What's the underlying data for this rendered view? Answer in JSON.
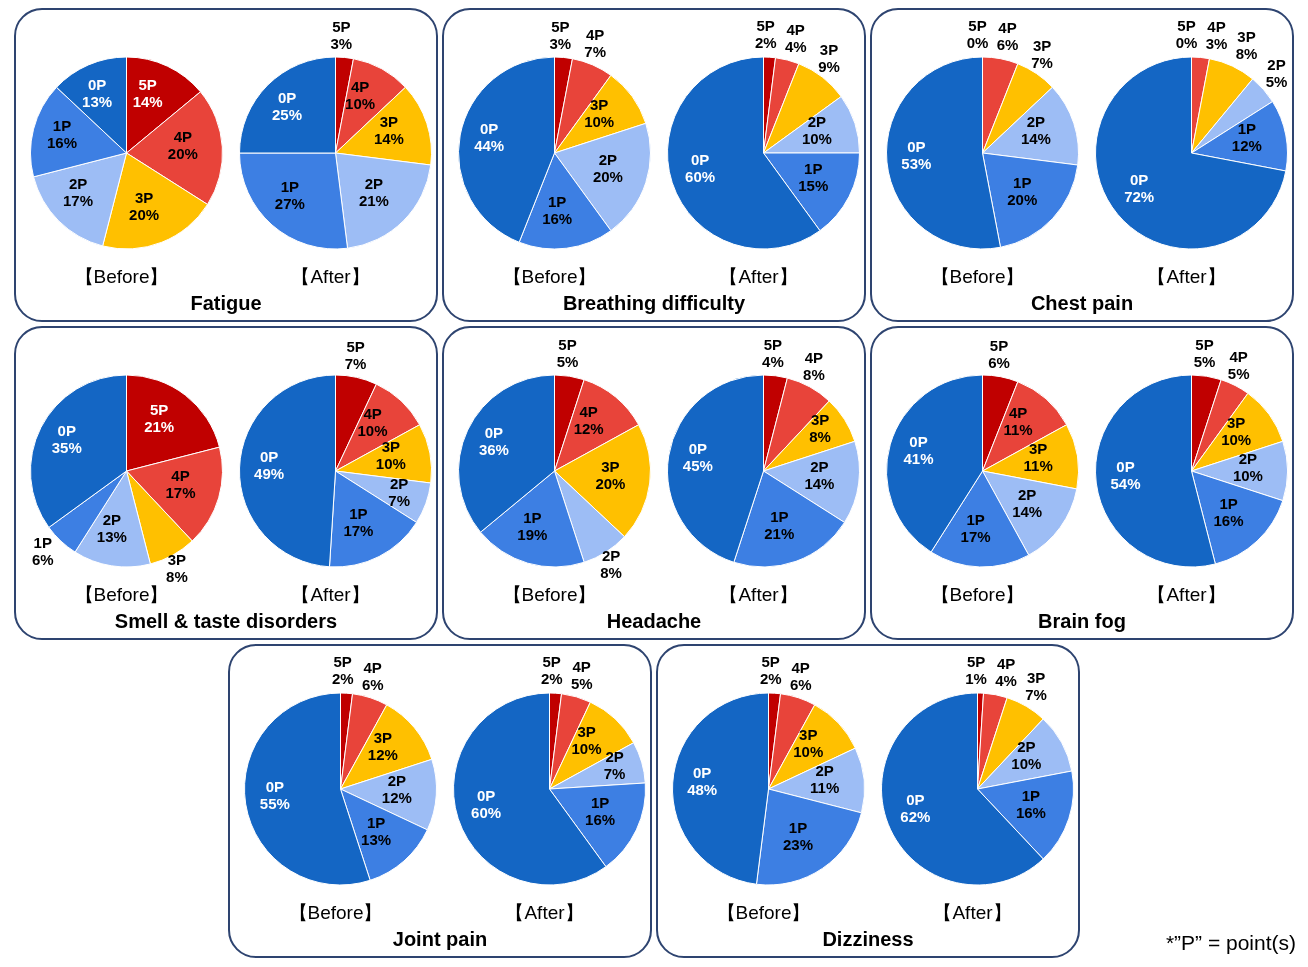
{
  "chart_data": [
    {
      "type": "pie",
      "title": "Fatigue",
      "xlabel": "【Before】",
      "categories": [
        "5P",
        "4P",
        "3P",
        "2P",
        "1P",
        "0P"
      ],
      "values": [
        14,
        20,
        20,
        17,
        16,
        13
      ],
      "value_labels": [
        "14%",
        "20%",
        "20%",
        "17%",
        "16%",
        "13%"
      ],
      "data_labels": true,
      "colors": [
        "#c00000",
        "#e8443a",
        "#ffc000",
        "#9dbdf5",
        "#3d7fe3",
        "#1466c4"
      ]
    },
    {
      "type": "pie",
      "xlabel": "【After】",
      "categories": [
        "5P",
        "4P",
        "3P",
        "2P",
        "1P",
        "0P"
      ],
      "values": [
        3,
        10,
        14,
        21,
        27,
        25
      ],
      "value_labels": [
        "3%",
        "10%",
        "14%",
        "21%",
        "27%",
        "25%"
      ],
      "data_labels": true,
      "colors": [
        "#c00000",
        "#e8443a",
        "#ffc000",
        "#9dbdf5",
        "#3d7fe3",
        "#1466c4"
      ]
    },
    {
      "type": "pie",
      "title": "Breathing difficulty",
      "xlabel": "【Before】",
      "categories": [
        "5P",
        "4P",
        "3P",
        "2P",
        "1P",
        "0P"
      ],
      "values": [
        3,
        7,
        10,
        20,
        16,
        44
      ],
      "value_labels": [
        "3%",
        "7%",
        "10%",
        "20%",
        "16%",
        "44%"
      ],
      "data_labels": true,
      "colors": [
        "#c00000",
        "#e8443a",
        "#ffc000",
        "#9dbdf5",
        "#3d7fe3",
        "#1466c4"
      ]
    },
    {
      "type": "pie",
      "xlabel": "【After】",
      "categories": [
        "5P",
        "4P",
        "3P",
        "2P",
        "1P",
        "0P"
      ],
      "values": [
        2,
        4,
        9,
        10,
        15,
        60
      ],
      "value_labels": [
        "2%",
        "4%",
        "9%",
        "10%",
        "15%",
        "60%"
      ],
      "data_labels": true,
      "colors": [
        "#c00000",
        "#e8443a",
        "#ffc000",
        "#9dbdf5",
        "#3d7fe3",
        "#1466c4"
      ]
    },
    {
      "type": "pie",
      "title": "Chest pain",
      "xlabel": "【Before】",
      "categories": [
        "5P",
        "4P",
        "3P",
        "2P",
        "1P",
        "0P"
      ],
      "values": [
        0,
        6,
        7,
        14,
        20,
        53
      ],
      "value_labels": [
        "0%",
        "6%",
        "7%",
        "14%",
        "20%",
        "53%"
      ],
      "data_labels": true,
      "colors": [
        "#c00000",
        "#e8443a",
        "#ffc000",
        "#9dbdf5",
        "#3d7fe3",
        "#1466c4"
      ]
    },
    {
      "type": "pie",
      "xlabel": "【After】",
      "categories": [
        "5P",
        "4P",
        "3P",
        "2P",
        "1P",
        "0P"
      ],
      "values": [
        0,
        3,
        8,
        5,
        12,
        72
      ],
      "value_labels": [
        "0%",
        "3%",
        "8%",
        "5%",
        "12%",
        "72%"
      ],
      "data_labels": true,
      "colors": [
        "#c00000",
        "#e8443a",
        "#ffc000",
        "#9dbdf5",
        "#3d7fe3",
        "#1466c4"
      ]
    },
    {
      "type": "pie",
      "title": "Smell & taste disorders",
      "xlabel": "【Before】",
      "categories": [
        "5P",
        "4P",
        "3P",
        "2P",
        "1P",
        "0P"
      ],
      "values": [
        21,
        17,
        8,
        13,
        6,
        35
      ],
      "value_labels": [
        "21%",
        "17%",
        "8%",
        "13%",
        "6%",
        "35%"
      ],
      "data_labels": true,
      "colors": [
        "#c00000",
        "#e8443a",
        "#ffc000",
        "#9dbdf5",
        "#3d7fe3",
        "#1466c4"
      ]
    },
    {
      "type": "pie",
      "xlabel": "【After】",
      "categories": [
        "5P",
        "4P",
        "3P",
        "2P",
        "1P",
        "0P"
      ],
      "values": [
        7,
        10,
        10,
        7,
        17,
        49
      ],
      "value_labels": [
        "7%",
        "10%",
        "10%",
        "7%",
        "17%",
        "49%"
      ],
      "data_labels": true,
      "colors": [
        "#c00000",
        "#e8443a",
        "#ffc000",
        "#9dbdf5",
        "#3d7fe3",
        "#1466c4"
      ]
    },
    {
      "type": "pie",
      "title": "Headache",
      "xlabel": "【Before】",
      "categories": [
        "5P",
        "4P",
        "3P",
        "2P",
        "1P",
        "0P"
      ],
      "values": [
        5,
        12,
        20,
        8,
        19,
        36
      ],
      "value_labels": [
        "5%",
        "12%",
        "20%",
        "8%",
        "19%",
        "36%"
      ],
      "data_labels": true,
      "colors": [
        "#c00000",
        "#e8443a",
        "#ffc000",
        "#9dbdf5",
        "#3d7fe3",
        "#1466c4"
      ]
    },
    {
      "type": "pie",
      "xlabel": "【After】",
      "categories": [
        "5P",
        "4P",
        "3P",
        "2P",
        "1P",
        "0P"
      ],
      "values": [
        4,
        8,
        8,
        14,
        21,
        45
      ],
      "value_labels": [
        "4%",
        "8%",
        "8%",
        "14%",
        "21%",
        "45%"
      ],
      "data_labels": true,
      "colors": [
        "#c00000",
        "#e8443a",
        "#ffc000",
        "#9dbdf5",
        "#3d7fe3",
        "#1466c4"
      ]
    },
    {
      "type": "pie",
      "title": "Brain fog",
      "xlabel": "【Before】",
      "categories": [
        "5P",
        "4P",
        "3P",
        "2P",
        "1P",
        "0P"
      ],
      "values": [
        6,
        11,
        11,
        14,
        17,
        41
      ],
      "value_labels": [
        "6%",
        "11%",
        "11%",
        "14%",
        "17%",
        "41%"
      ],
      "data_labels": true,
      "colors": [
        "#c00000",
        "#e8443a",
        "#ffc000",
        "#9dbdf5",
        "#3d7fe3",
        "#1466c4"
      ]
    },
    {
      "type": "pie",
      "xlabel": "【After】",
      "categories": [
        "5P",
        "4P",
        "3P",
        "2P",
        "1P",
        "0P"
      ],
      "values": [
        5,
        5,
        10,
        10,
        16,
        54
      ],
      "value_labels": [
        "5%",
        "5%",
        "10%",
        "10%",
        "16%",
        "54%"
      ],
      "data_labels": true,
      "colors": [
        "#c00000",
        "#e8443a",
        "#ffc000",
        "#9dbdf5",
        "#3d7fe3",
        "#1466c4"
      ]
    },
    {
      "type": "pie",
      "title": "Joint pain",
      "xlabel": "【Before】",
      "categories": [
        "5P",
        "4P",
        "3P",
        "2P",
        "1P",
        "0P"
      ],
      "values": [
        2,
        6,
        12,
        12,
        13,
        55
      ],
      "value_labels": [
        "2%",
        "6%",
        "12%",
        "12%",
        "13%",
        "55%"
      ],
      "data_labels": true,
      "colors": [
        "#c00000",
        "#e8443a",
        "#ffc000",
        "#9dbdf5",
        "#3d7fe3",
        "#1466c4"
      ]
    },
    {
      "type": "pie",
      "xlabel": "【After】",
      "categories": [
        "5P",
        "4P",
        "3P",
        "2P",
        "1P",
        "0P"
      ],
      "values": [
        2,
        5,
        10,
        7,
        16,
        60
      ],
      "value_labels": [
        "2%",
        "5%",
        "10%",
        "7%",
        "16%",
        "60%"
      ],
      "data_labels": true,
      "colors": [
        "#c00000",
        "#e8443a",
        "#ffc000",
        "#9dbdf5",
        "#3d7fe3",
        "#1466c4"
      ]
    },
    {
      "type": "pie",
      "title": "Dizziness",
      "xlabel": "【Before】",
      "categories": [
        "5P",
        "4P",
        "3P",
        "2P",
        "1P",
        "0P"
      ],
      "values": [
        2,
        6,
        10,
        11,
        23,
        48
      ],
      "value_labels": [
        "2%",
        "6%",
        "10%",
        "11%",
        "23%",
        "48%"
      ],
      "data_labels": true,
      "colors": [
        "#c00000",
        "#e8443a",
        "#ffc000",
        "#9dbdf5",
        "#3d7fe3",
        "#1466c4"
      ]
    },
    {
      "type": "pie",
      "xlabel": "【After】",
      "categories": [
        "5P",
        "4P",
        "3P",
        "2P",
        "1P",
        "0P"
      ],
      "values": [
        1,
        4,
        7,
        10,
        16,
        62
      ],
      "value_labels": [
        "1%",
        "4%",
        "7%",
        "10%",
        "16%",
        "62%"
      ],
      "data_labels": true,
      "colors": [
        "#c00000",
        "#e8443a",
        "#ffc000",
        "#9dbdf5",
        "#3d7fe3",
        "#1466c4"
      ],
      "annotations": [
        "*”P” = point(s)"
      ]
    }
  ]
}
